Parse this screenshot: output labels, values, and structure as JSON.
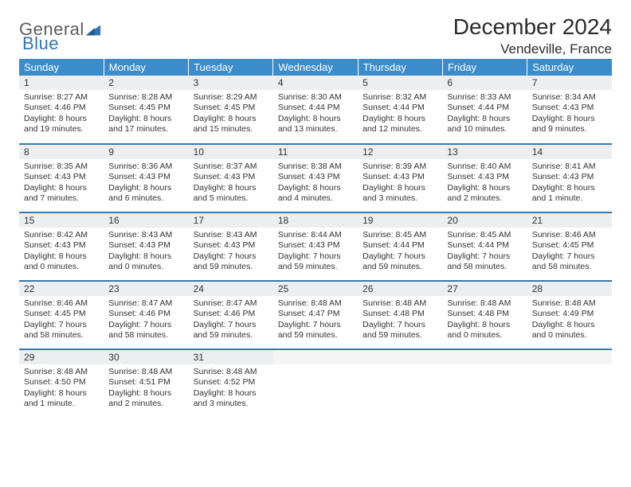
{
  "brand": {
    "general": "General",
    "blue": "Blue"
  },
  "title": {
    "month": "December 2024",
    "location": "Vendeville, France"
  },
  "colors": {
    "header_bg": "#3a8ccb",
    "header_text": "#ffffff",
    "row_divider": "#3a78a8",
    "daynum_bg": "#eceeef",
    "body_text": "#333333",
    "logo_gray": "#5c5c5c",
    "logo_blue": "#2f75b5"
  },
  "weekdays": [
    "Sunday",
    "Monday",
    "Tuesday",
    "Wednesday",
    "Thursday",
    "Friday",
    "Saturday"
  ],
  "weeks": [
    [
      {
        "n": "1",
        "sr": "Sunrise: 8:27 AM",
        "ss": "Sunset: 4:46 PM",
        "d1": "Daylight: 8 hours",
        "d2": "and 19 minutes."
      },
      {
        "n": "2",
        "sr": "Sunrise: 8:28 AM",
        "ss": "Sunset: 4:45 PM",
        "d1": "Daylight: 8 hours",
        "d2": "and 17 minutes."
      },
      {
        "n": "3",
        "sr": "Sunrise: 8:29 AM",
        "ss": "Sunset: 4:45 PM",
        "d1": "Daylight: 8 hours",
        "d2": "and 15 minutes."
      },
      {
        "n": "4",
        "sr": "Sunrise: 8:30 AM",
        "ss": "Sunset: 4:44 PM",
        "d1": "Daylight: 8 hours",
        "d2": "and 13 minutes."
      },
      {
        "n": "5",
        "sr": "Sunrise: 8:32 AM",
        "ss": "Sunset: 4:44 PM",
        "d1": "Daylight: 8 hours",
        "d2": "and 12 minutes."
      },
      {
        "n": "6",
        "sr": "Sunrise: 8:33 AM",
        "ss": "Sunset: 4:44 PM",
        "d1": "Daylight: 8 hours",
        "d2": "and 10 minutes."
      },
      {
        "n": "7",
        "sr": "Sunrise: 8:34 AM",
        "ss": "Sunset: 4:43 PM",
        "d1": "Daylight: 8 hours",
        "d2": "and 9 minutes."
      }
    ],
    [
      {
        "n": "8",
        "sr": "Sunrise: 8:35 AM",
        "ss": "Sunset: 4:43 PM",
        "d1": "Daylight: 8 hours",
        "d2": "and 7 minutes."
      },
      {
        "n": "9",
        "sr": "Sunrise: 8:36 AM",
        "ss": "Sunset: 4:43 PM",
        "d1": "Daylight: 8 hours",
        "d2": "and 6 minutes."
      },
      {
        "n": "10",
        "sr": "Sunrise: 8:37 AM",
        "ss": "Sunset: 4:43 PM",
        "d1": "Daylight: 8 hours",
        "d2": "and 5 minutes."
      },
      {
        "n": "11",
        "sr": "Sunrise: 8:38 AM",
        "ss": "Sunset: 4:43 PM",
        "d1": "Daylight: 8 hours",
        "d2": "and 4 minutes."
      },
      {
        "n": "12",
        "sr": "Sunrise: 8:39 AM",
        "ss": "Sunset: 4:43 PM",
        "d1": "Daylight: 8 hours",
        "d2": "and 3 minutes."
      },
      {
        "n": "13",
        "sr": "Sunrise: 8:40 AM",
        "ss": "Sunset: 4:43 PM",
        "d1": "Daylight: 8 hours",
        "d2": "and 2 minutes."
      },
      {
        "n": "14",
        "sr": "Sunrise: 8:41 AM",
        "ss": "Sunset: 4:43 PM",
        "d1": "Daylight: 8 hours",
        "d2": "and 1 minute."
      }
    ],
    [
      {
        "n": "15",
        "sr": "Sunrise: 8:42 AM",
        "ss": "Sunset: 4:43 PM",
        "d1": "Daylight: 8 hours",
        "d2": "and 0 minutes."
      },
      {
        "n": "16",
        "sr": "Sunrise: 8:43 AM",
        "ss": "Sunset: 4:43 PM",
        "d1": "Daylight: 8 hours",
        "d2": "and 0 minutes."
      },
      {
        "n": "17",
        "sr": "Sunrise: 8:43 AM",
        "ss": "Sunset: 4:43 PM",
        "d1": "Daylight: 7 hours",
        "d2": "and 59 minutes."
      },
      {
        "n": "18",
        "sr": "Sunrise: 8:44 AM",
        "ss": "Sunset: 4:43 PM",
        "d1": "Daylight: 7 hours",
        "d2": "and 59 minutes."
      },
      {
        "n": "19",
        "sr": "Sunrise: 8:45 AM",
        "ss": "Sunset: 4:44 PM",
        "d1": "Daylight: 7 hours",
        "d2": "and 59 minutes."
      },
      {
        "n": "20",
        "sr": "Sunrise: 8:45 AM",
        "ss": "Sunset: 4:44 PM",
        "d1": "Daylight: 7 hours",
        "d2": "and 58 minutes."
      },
      {
        "n": "21",
        "sr": "Sunrise: 8:46 AM",
        "ss": "Sunset: 4:45 PM",
        "d1": "Daylight: 7 hours",
        "d2": "and 58 minutes."
      }
    ],
    [
      {
        "n": "22",
        "sr": "Sunrise: 8:46 AM",
        "ss": "Sunset: 4:45 PM",
        "d1": "Daylight: 7 hours",
        "d2": "and 58 minutes."
      },
      {
        "n": "23",
        "sr": "Sunrise: 8:47 AM",
        "ss": "Sunset: 4:46 PM",
        "d1": "Daylight: 7 hours",
        "d2": "and 58 minutes."
      },
      {
        "n": "24",
        "sr": "Sunrise: 8:47 AM",
        "ss": "Sunset: 4:46 PM",
        "d1": "Daylight: 7 hours",
        "d2": "and 59 minutes."
      },
      {
        "n": "25",
        "sr": "Sunrise: 8:48 AM",
        "ss": "Sunset: 4:47 PM",
        "d1": "Daylight: 7 hours",
        "d2": "and 59 minutes."
      },
      {
        "n": "26",
        "sr": "Sunrise: 8:48 AM",
        "ss": "Sunset: 4:48 PM",
        "d1": "Daylight: 7 hours",
        "d2": "and 59 minutes."
      },
      {
        "n": "27",
        "sr": "Sunrise: 8:48 AM",
        "ss": "Sunset: 4:48 PM",
        "d1": "Daylight: 8 hours",
        "d2": "and 0 minutes."
      },
      {
        "n": "28",
        "sr": "Sunrise: 8:48 AM",
        "ss": "Sunset: 4:49 PM",
        "d1": "Daylight: 8 hours",
        "d2": "and 0 minutes."
      }
    ],
    [
      {
        "n": "29",
        "sr": "Sunrise: 8:48 AM",
        "ss": "Sunset: 4:50 PM",
        "d1": "Daylight: 8 hours",
        "d2": "and 1 minute."
      },
      {
        "n": "30",
        "sr": "Sunrise: 8:48 AM",
        "ss": "Sunset: 4:51 PM",
        "d1": "Daylight: 8 hours",
        "d2": "and 2 minutes."
      },
      {
        "n": "31",
        "sr": "Sunrise: 8:48 AM",
        "ss": "Sunset: 4:52 PM",
        "d1": "Daylight: 8 hours",
        "d2": "and 3 minutes."
      },
      {
        "empty": true
      },
      {
        "empty": true
      },
      {
        "empty": true
      },
      {
        "empty": true
      }
    ]
  ]
}
